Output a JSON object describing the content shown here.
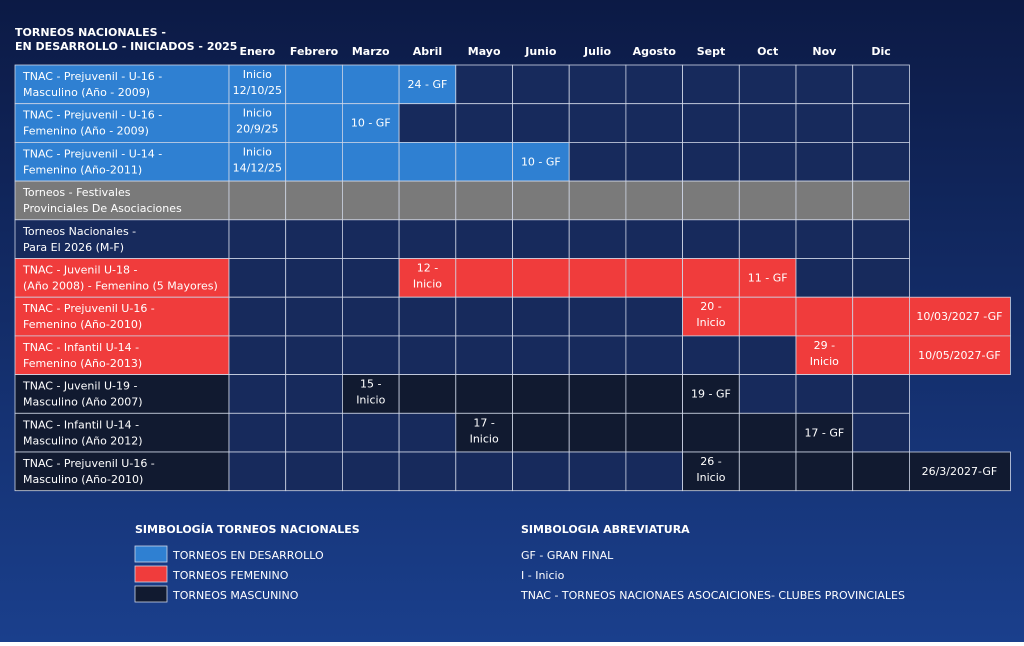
{
  "header": {
    "title": [
      "TORNEOS NACIONALES -",
      "EN DESARROLLO - INICIADOS - 2025"
    ]
  },
  "table": {
    "columns": [
      "Enero",
      "Febrero",
      "Marzo",
      "Abril",
      "Mayo",
      "Junio",
      "Julio",
      "Agosto",
      "Sept",
      "Oct",
      "Nov",
      "Dic"
    ],
    "rows": [
      {
        "label": [
          "TNAC - Prejuvenil - U-16 -",
          "Masculino (Año - 2009)"
        ],
        "cells": [
          {
            "column": "Enero",
            "text": [
              "Inicio",
              "12/10/25"
            ]
          },
          {
            "column": "Abril",
            "text": [
              "24 - GF"
            ]
          }
        ]
      },
      {
        "label": [
          "TNAC - Prejuvenil - U-16 -",
          "Femenino (Año - 2009)"
        ],
        "cells": [
          {
            "column": "Enero",
            "text": [
              "Inicio",
              "20/9/25"
            ]
          },
          {
            "column": "Marzo",
            "text": [
              "10 - GF"
            ]
          }
        ]
      },
      {
        "label": [
          "TNAC - Prejuvenil - U-14 -",
          "Femenino (Año-2011)"
        ],
        "cells": [
          {
            "column": "Enero",
            "text": [
              "Inicio",
              "14/12/25"
            ]
          },
          {
            "column": "Junio",
            "text": [
              "10 - GF"
            ]
          }
        ]
      },
      {
        "label": [
          "Torneos - Festivales",
          "Provinciales De Asociaciones"
        ],
        "cells": []
      },
      {
        "label": [
          "Torneos Nacionales -",
          "Para El 2026 (M-F)"
        ],
        "cells": []
      },
      {
        "label": [
          "TNAC - Juvenil U-18 -",
          "(Año 2008) - Femenino (5 Mayores)"
        ],
        "cells": [
          {
            "column": "Abril",
            "text": [
              "12 -",
              "Inicio"
            ]
          },
          {
            "column": "Oct",
            "text": [
              "11 - GF"
            ]
          }
        ]
      },
      {
        "label": [
          "TNAC - Prejuvenil U-16 -",
          "Femenino (Año-2010)"
        ],
        "cells": [
          {
            "column": "Sept",
            "text": [
              "20 -",
              "Inicio"
            ]
          }
        ],
        "final": "10/03/2027 -GF"
      },
      {
        "label": [
          "TNAC - Infantil U-14 -",
          "Femenino (Año-2013)"
        ],
        "cells": [
          {
            "column": "Nov",
            "text": [
              "29 -",
              "Inicio"
            ]
          }
        ],
        "final": "10/05/2027-GF"
      },
      {
        "label": [
          "TNAC - Juvenil U-19 -",
          "Masculino  (Año 2007)"
        ],
        "cells": [
          {
            "column": "Marzo",
            "text": [
              "15 -",
              "Inicio"
            ]
          },
          {
            "column": "Sept",
            "text": [
              "19 - GF"
            ]
          }
        ]
      },
      {
        "label": [
          "TNAC - Infantil U-14 -",
          "Masculino (Año 2012)"
        ],
        "cells": [
          {
            "column": "Mayo",
            "text": [
              "17 -",
              "Inicio"
            ]
          },
          {
            "column": "Nov",
            "text": [
              "17 - GF"
            ]
          }
        ]
      },
      {
        "label": [
          "TNAC - Prejuvenil U-16 -",
          "Masculino (Año-2010)"
        ],
        "cells": [
          {
            "column": "Sept",
            "text": [
              "26 -",
              "Inicio"
            ]
          }
        ],
        "final": "26/3/2027-GF"
      }
    ]
  },
  "legend": {
    "title": "SIMBOLOGÍA TORNEOS NACIONALES",
    "items": [
      "TORNEOS EN DESARROLLO",
      "TORNEOS FEMENINO",
      "TORNEOS MASCUNINO"
    ]
  },
  "abbreviations": {
    "title": "SIMBOLOGIA ABREVIATURA",
    "items": [
      "GF - GRAN FINAL",
      "I - Inicio",
      "TNAC - TORNEOS NACIONAES ASOCAICIONES- CLUBES PROVINCIALES"
    ]
  }
}
